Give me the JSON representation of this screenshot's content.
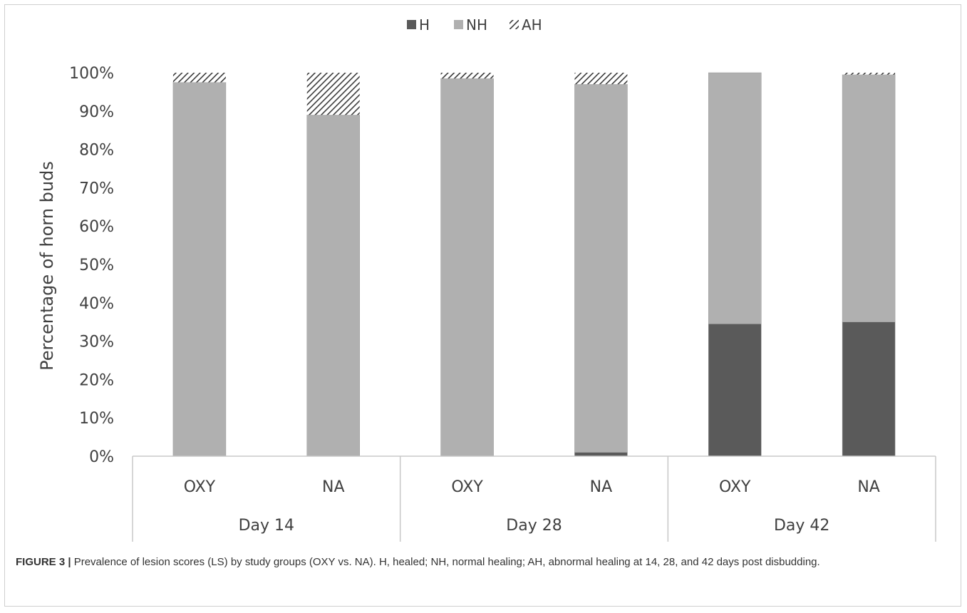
{
  "chart_data": {
    "type": "bar",
    "stacked": true,
    "title": "",
    "ylabel": "Percentage of horn buds",
    "xlabel": "",
    "ylim": [
      0,
      100
    ],
    "yticks": [
      "0%",
      "10%",
      "20%",
      "30%",
      "40%",
      "50%",
      "60%",
      "70%",
      "80%",
      "90%",
      "100%"
    ],
    "groups": [
      "Day 14",
      "Day 28",
      "Day 42"
    ],
    "categories": [
      "OXY",
      "NA",
      "OXY",
      "NA",
      "OXY",
      "NA"
    ],
    "series": [
      {
        "name": "H",
        "values": [
          0,
          0,
          0,
          1,
          34.5,
          35
        ],
        "color": "#5a5a5a",
        "pattern": "solid"
      },
      {
        "name": "NH",
        "values": [
          97.5,
          89,
          98.5,
          96,
          65.5,
          64.5
        ],
        "color": "#b0b0b0",
        "pattern": "solid"
      },
      {
        "name": "AH",
        "values": [
          2.5,
          11,
          1.5,
          3,
          0,
          0.5
        ],
        "color": "#3a3a3a",
        "pattern": "hatch"
      }
    ],
    "legend_position": "top-center",
    "grid": false
  },
  "caption": {
    "label": "FIGURE 3 |",
    "text": " Prevalence of lesion scores (LS) by study groups (OXY vs. NA). H, healed; NH, normal healing; AH, abnormal healing at 14, 28, and 42 days post disbudding."
  }
}
